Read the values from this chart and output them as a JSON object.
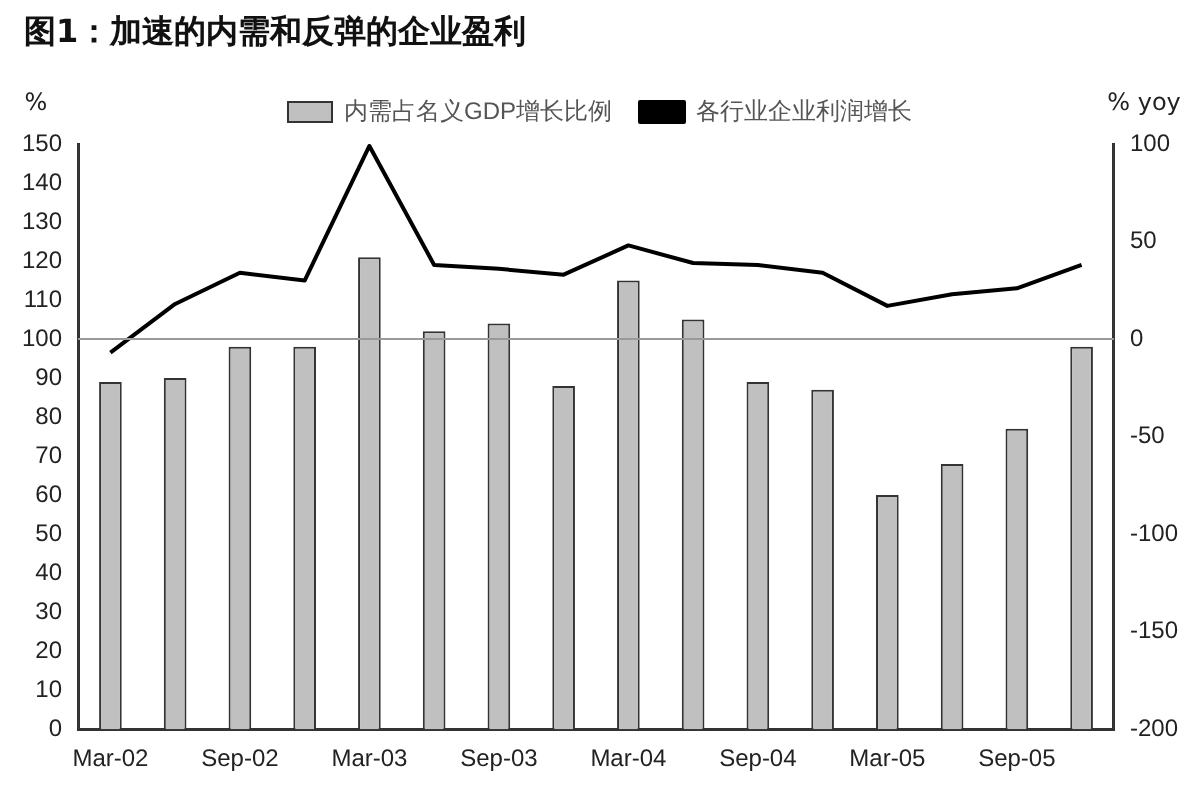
{
  "chart_data": {
    "type": "bar",
    "title": "图1：加速的内需和反弹的企业盈利",
    "ylabel": "%",
    "y2label": "% yoy",
    "categories": [
      "Mar-02",
      null,
      "Sep-02",
      null,
      "Mar-03",
      null,
      "Sep-03",
      null,
      "Mar-04",
      null,
      "Sep-04",
      null,
      "Mar-05",
      null,
      "Sep-05",
      null
    ],
    "series": [
      {
        "name": "内需占名义GDP增长比例",
        "color": "#c0c0c0",
        "values": [
          89,
          90,
          98,
          98,
          121,
          102,
          104,
          88,
          115,
          105,
          89,
          87,
          60,
          68,
          77,
          98
        ]
      },
      {
        "name": "各行业企业利润增长",
        "type": "line",
        "axis": "y2",
        "color": "#000000",
        "values": [
          -7,
          18,
          34,
          30,
          99,
          38,
          36,
          33,
          48,
          39,
          38,
          34,
          17,
          23,
          26,
          38
        ]
      }
    ],
    "ylim": [
      0,
      150
    ],
    "yticks": [
      0,
      10,
      20,
      30,
      40,
      50,
      60,
      70,
      80,
      90,
      100,
      110,
      120,
      130,
      140,
      150
    ],
    "y2lim": [
      -200,
      100
    ],
    "y2ticks": [
      -200,
      -150,
      -100,
      -50,
      0,
      50,
      100
    ],
    "ref_lines": [
      {
        "axis": "y2",
        "value": 0,
        "color": "#999999"
      }
    ],
    "grid": false,
    "legend": "top",
    "marker": "none",
    "line_style": "solid"
  }
}
